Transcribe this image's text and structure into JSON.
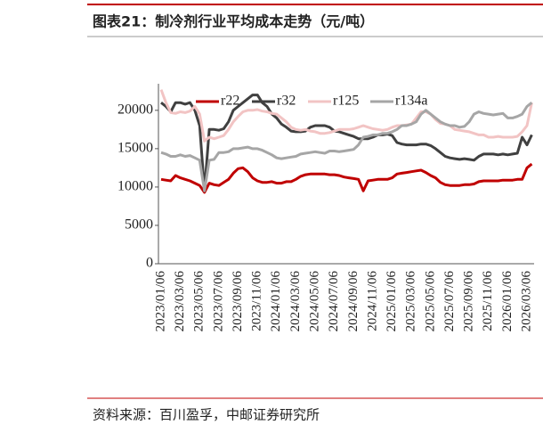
{
  "chart_data": {
    "type": "line",
    "title": "图表21：制冷剂行业平均成本走势（元/吨）",
    "source": "资料来源：百川盈孚，中邮证券研究所",
    "categories": [
      "2023/01/06",
      null,
      null,
      null,
      "2023/03/06",
      null,
      null,
      null,
      "2023/05/06",
      null,
      null,
      null,
      "2023/07/06",
      null,
      null,
      null,
      "2023/09/06",
      null,
      null,
      null,
      "2023/11/06",
      null,
      null,
      null,
      "2024/01/06",
      null,
      null,
      null,
      "2024/03/06",
      null,
      null,
      null,
      "2024/05/06",
      null,
      null,
      null,
      "2024/07/06",
      null,
      null,
      null,
      "2024/09/06",
      null,
      null,
      null,
      "2024/11/06",
      null,
      null,
      null,
      "2025/01/06",
      null,
      null,
      null,
      "2025/03/06",
      null,
      null,
      null,
      "2025/05/06",
      null,
      null,
      null,
      "2025/07/06",
      null,
      null,
      null,
      "2025/09/06",
      null,
      null,
      null,
      "2025/11/06",
      null,
      null,
      null,
      "2026/01/06",
      null,
      null,
      null,
      "2026/03/06",
      null
    ],
    "series": [
      {
        "name": "r22",
        "color": "#c00000",
        "values": [
          11000,
          10900,
          10800,
          11500,
          11200,
          11000,
          10800,
          10500,
          10200,
          9300,
          10500,
          10300,
          10200,
          10600,
          11000,
          11800,
          12400,
          12500,
          12000,
          11200,
          10800,
          10600,
          10600,
          10700,
          10500,
          10500,
          10700,
          10700,
          11000,
          11400,
          11600,
          11700,
          11700,
          11700,
          11700,
          11600,
          11600,
          11500,
          11300,
          11200,
          11100,
          11000,
          9500,
          10800,
          10900,
          11000,
          11000,
          11000,
          11200,
          11700,
          11800,
          11900,
          12000,
          12100,
          12200,
          11900,
          11500,
          11200,
          10600,
          10300,
          10200,
          10200,
          10200,
          10300,
          10300,
          10400,
          10700,
          10800,
          10800,
          10800,
          10800,
          10900,
          10900,
          10900,
          11000,
          11000,
          12500,
          13000
        ]
      },
      {
        "name": "r32",
        "color": "#404040",
        "values": [
          21000,
          20500,
          19800,
          21000,
          21000,
          20800,
          21000,
          20000,
          18000,
          9500,
          17500,
          17500,
          17400,
          17600,
          18500,
          20000,
          20500,
          21000,
          21500,
          22000,
          22000,
          21000,
          20500,
          19500,
          19000,
          18200,
          17800,
          17300,
          17200,
          17200,
          17300,
          17800,
          18000,
          18000,
          18000,
          17800,
          17300,
          17200,
          17000,
          16800,
          16600,
          16300,
          16300,
          16300,
          16500,
          16800,
          16800,
          16900,
          16700,
          15800,
          15600,
          15500,
          15500,
          15500,
          15600,
          15600,
          15400,
          15000,
          14500,
          14000,
          13800,
          13700,
          13600,
          13700,
          13600,
          13500,
          14000,
          14300,
          14300,
          14300,
          14200,
          14300,
          14200,
          14300,
          14400,
          16500,
          15500,
          16800
        ]
      },
      {
        "name": "r125",
        "color": "#f2c4c4",
        "values": [
          22700,
          21000,
          19700,
          19600,
          19800,
          19700,
          19900,
          20500,
          19500,
          16000,
          16500,
          16300,
          16500,
          16700,
          17500,
          18500,
          19200,
          19800,
          20000,
          20000,
          20100,
          19900,
          19800,
          19600,
          19500,
          19000,
          18500,
          17800,
          17500,
          17400,
          17500,
          17300,
          17200,
          17000,
          17000,
          17100,
          17300,
          17500,
          17500,
          17500,
          17600,
          17800,
          18000,
          17800,
          17600,
          17500,
          17400,
          17500,
          17800,
          18000,
          18000,
          18100,
          18200,
          19000,
          19800,
          19800,
          19500,
          18800,
          18300,
          18200,
          18000,
          17500,
          17400,
          17300,
          17200,
          17000,
          16800,
          16800,
          16500,
          16500,
          16600,
          16500,
          16500,
          16500,
          16600,
          17200,
          18000,
          21000
        ]
      },
      {
        "name": "r134a",
        "color": "#a6a6a6",
        "values": [
          14500,
          14300,
          14000,
          14000,
          14200,
          14000,
          14100,
          13800,
          13500,
          9500,
          13500,
          13600,
          14500,
          14500,
          14600,
          15000,
          15000,
          15100,
          15200,
          15000,
          15000,
          14800,
          14500,
          14200,
          13800,
          13700,
          13800,
          13900,
          14000,
          14300,
          14400,
          14500,
          14600,
          14500,
          14400,
          14700,
          14700,
          14600,
          14700,
          14800,
          14900,
          15500,
          16500,
          16600,
          16800,
          16800,
          17000,
          17000,
          17200,
          17500,
          18000,
          18000,
          18200,
          18500,
          19500,
          20000,
          19500,
          19000,
          18500,
          18200,
          18000,
          18000,
          17800,
          17900,
          18500,
          19500,
          19800,
          19600,
          19500,
          19400,
          19500,
          19600,
          19000,
          19000,
          19200,
          19500,
          20500,
          21000
        ]
      }
    ],
    "ylim": [
      0,
      23000
    ],
    "yticks": [
      0,
      5000,
      10000,
      15000,
      20000
    ]
  }
}
